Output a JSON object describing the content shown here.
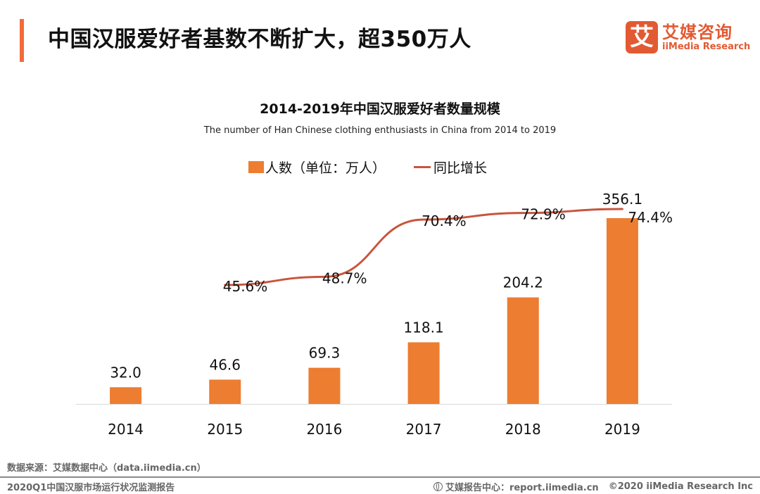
{
  "header": {
    "title": "中国汉服爱好者基数不断扩大，超350万人",
    "logo": {
      "mark": "艾",
      "name_cn": "艾媒咨询",
      "name_en": "iiMedia Research"
    }
  },
  "colors": {
    "accent": "#f26b3a",
    "bar": "#ed7d31",
    "line": "#c8553d",
    "brand": "#e25a33"
  },
  "chart_data": {
    "type": "bar",
    "title": "2014-2019年中国汉服爱好者数量规模",
    "subtitle": "The number of Han Chinese clothing enthusiasts in China from 2014 to 2019",
    "categories": [
      "2014",
      "2015",
      "2016",
      "2017",
      "2018",
      "2019"
    ],
    "series": [
      {
        "name": "人数（单位：万人）",
        "type": "bar",
        "values": [
          32.0,
          46.6,
          69.3,
          118.1,
          204.2,
          356.1
        ],
        "labels": [
          "32.0",
          "46.6",
          "69.3",
          "118.1",
          "204.2",
          "356.1"
        ]
      },
      {
        "name": "同比增长",
        "type": "line",
        "values": [
          null,
          45.6,
          48.7,
          70.4,
          72.9,
          74.4
        ],
        "labels": [
          "",
          "45.6%",
          "48.7%",
          "70.4%",
          "72.9%",
          "74.4%"
        ]
      }
    ],
    "xlabel": "",
    "ylabel": "",
    "ylim": [
      0,
      356.1
    ],
    "y2lim": [
      45.6,
      74.4
    ],
    "grid": false,
    "legend": "top-center"
  },
  "footer": {
    "source": "数据来源：艾媒数据中心（data.iimedia.cn）",
    "report": "2020Q1中国汉服市场运行状况监测报告",
    "report_center": "艾媒报告中心：report.iimedia.cn",
    "copyright": "©2020  iiMedia Research  Inc"
  }
}
